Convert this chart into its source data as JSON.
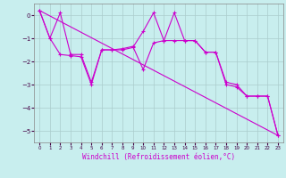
{
  "xlabel": "Windchill (Refroidissement éolien,°C)",
  "xlim": [
    -0.5,
    23.5
  ],
  "ylim": [
    -5.5,
    0.5
  ],
  "yticks": [
    0,
    -1,
    -2,
    -3,
    -4,
    -5
  ],
  "xticks": [
    0,
    1,
    2,
    3,
    4,
    5,
    6,
    7,
    8,
    9,
    10,
    11,
    12,
    13,
    14,
    15,
    16,
    17,
    18,
    19,
    20,
    21,
    22,
    23
  ],
  "bg_color": "#c8eeee",
  "line_color": "#cc00cc",
  "grid_color": "#aacccc",
  "series1_x": [
    0,
    1,
    2,
    3,
    4,
    5,
    6,
    7,
    8,
    9,
    10,
    11,
    12,
    13,
    14,
    15,
    16,
    17,
    18,
    19,
    20,
    21,
    22,
    23
  ],
  "series1_y": [
    0.2,
    -1.0,
    0.1,
    -1.7,
    -1.7,
    -2.9,
    -1.5,
    -1.5,
    -1.5,
    -1.4,
    -0.7,
    0.1,
    -1.1,
    -1.1,
    -1.1,
    -1.1,
    -1.6,
    -1.6,
    -2.9,
    -3.0,
    -3.5,
    -3.5,
    -3.5,
    -5.2
  ],
  "series2_x": [
    0,
    1,
    2,
    3,
    4,
    5,
    6,
    7,
    8,
    9,
    10,
    11,
    12,
    13,
    14,
    15,
    16,
    17,
    18,
    19,
    20,
    21,
    22,
    23
  ],
  "series2_y": [
    0.2,
    -1.0,
    -1.7,
    -1.75,
    -1.8,
    -3.0,
    -1.5,
    -1.5,
    -1.45,
    -1.35,
    -2.35,
    -1.2,
    -1.1,
    0.1,
    -1.1,
    -1.1,
    -1.6,
    -1.6,
    -3.0,
    -3.1,
    -3.5,
    -3.5,
    -3.5,
    -5.2
  ],
  "trend_x": [
    0,
    23
  ],
  "trend_y": [
    0.2,
    -5.2
  ]
}
